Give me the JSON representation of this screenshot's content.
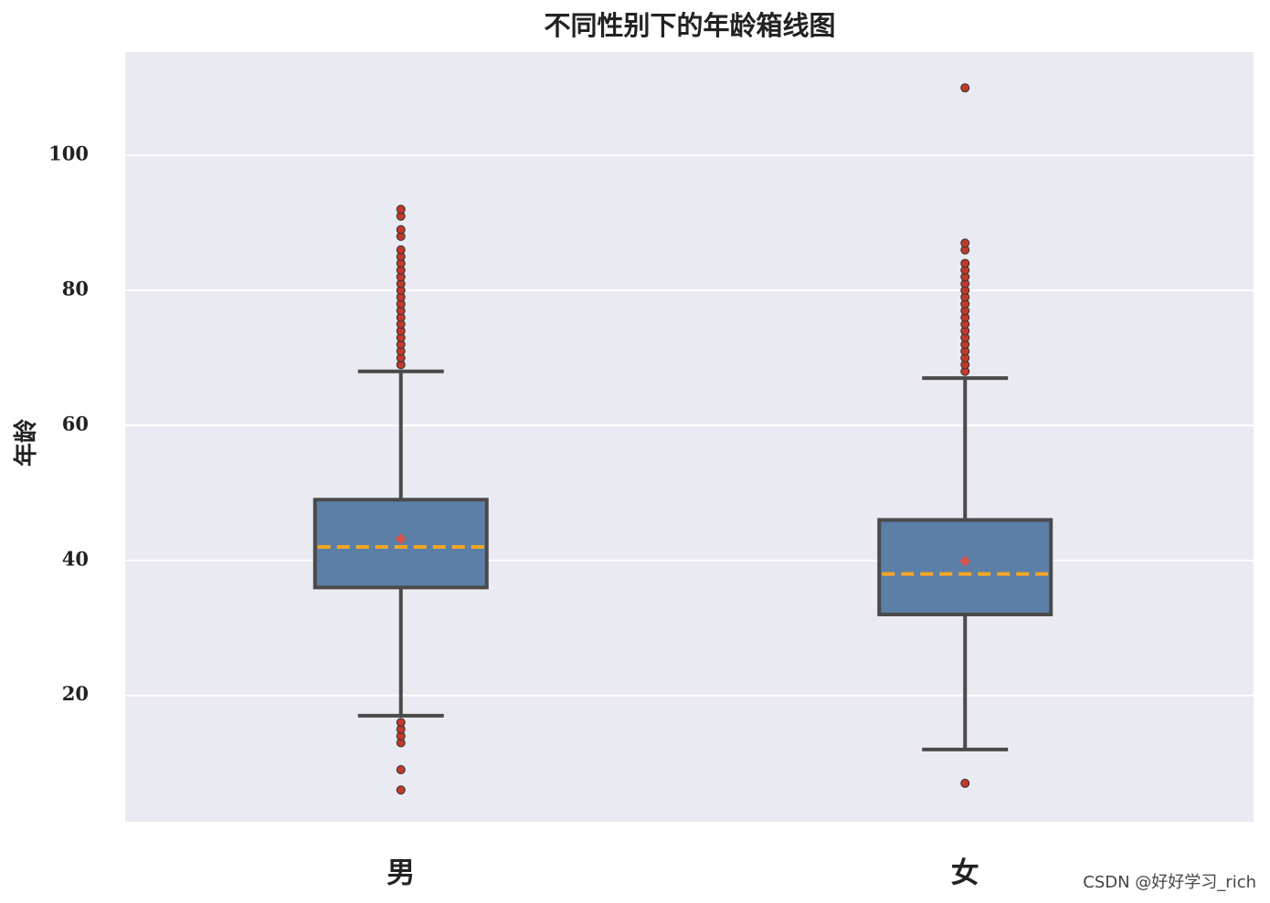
{
  "chart_data": {
    "type": "boxplot",
    "title": "不同性别下的年龄箱线图",
    "ylabel": "年龄",
    "categories": [
      "男",
      "女"
    ],
    "boxes": [
      {
        "whislo": 17,
        "q1": 36,
        "median": 42,
        "q3": 49,
        "whishi": 68,
        "mean": 43.2,
        "fliers": [
          6,
          9,
          13,
          14,
          15,
          16,
          69,
          70,
          71,
          72,
          73,
          74,
          75,
          76,
          77,
          78,
          79,
          80,
          81,
          82,
          83,
          84,
          85,
          86,
          88,
          89,
          91,
          92
        ]
      },
      {
        "whislo": 12,
        "q1": 32,
        "median": 38,
        "q3": 46,
        "whishi": 67,
        "mean": 39.9,
        "fliers": [
          7,
          68,
          69,
          70,
          71,
          72,
          73,
          74,
          75,
          76,
          77,
          78,
          79,
          80,
          81,
          82,
          83,
          84,
          86,
          87,
          110
        ]
      }
    ],
    "box_color": "#5b7fa6",
    "edge_color": "#4a4a4a",
    "median_color": "#f5a623",
    "mean_color": "#d9534f",
    "flier_color": "#c0392b",
    "ylim": [
      1.3,
      115.3
    ],
    "yticks": [
      20,
      40,
      60,
      80,
      100
    ],
    "grid": true
  },
  "watermark": "CSDN @好好学习_rich"
}
